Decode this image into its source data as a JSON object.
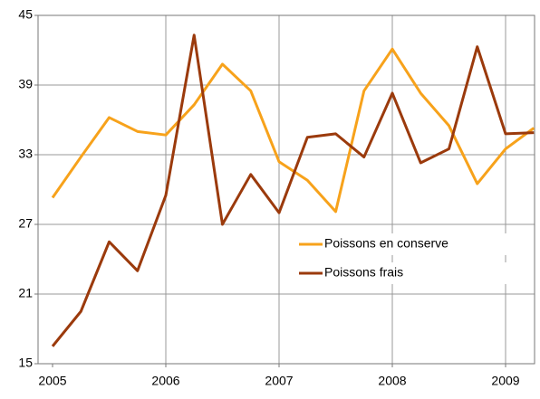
{
  "chart_data": {
    "type": "line",
    "categories": [
      "2005",
      null,
      null,
      null,
      "2006",
      null,
      null,
      null,
      "2007",
      null,
      null,
      null,
      "2008",
      null,
      null,
      null,
      "2009",
      null
    ],
    "series": [
      {
        "name": "Poissons en conserve",
        "color": "#f7a21b",
        "values": [
          29.3,
          32.8,
          36.2,
          35,
          34.7,
          37.3,
          40.8,
          38.5,
          32.4,
          30.8,
          28.1,
          38.5,
          42.1,
          38.3,
          35.5,
          30.5,
          33.5,
          35.3
        ]
      },
      {
        "name": "Poissons frais",
        "color": "#9b3a0c",
        "values": [
          16.5,
          19.5,
          25.5,
          23,
          29.5,
          43.3,
          27,
          31.3,
          28,
          34.5,
          34.8,
          32.8,
          38.3,
          32.3,
          33.5,
          42.3,
          34.8,
          34.9
        ]
      }
    ],
    "ylim": [
      15,
      45
    ],
    "yticks": [
      15,
      21,
      27,
      33,
      39,
      45
    ],
    "grid": true,
    "legend": "right"
  }
}
